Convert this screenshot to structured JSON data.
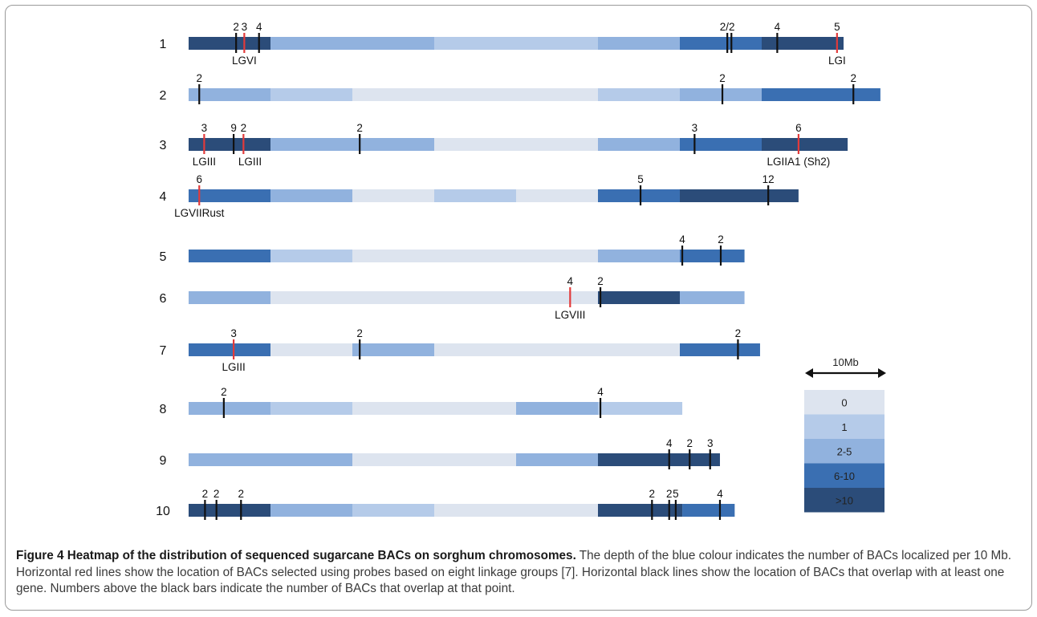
{
  "colors": {
    "0": "#dde4ef",
    "1": "#b5cbe9",
    "2-5": "#91b2de",
    "6-10": "#3a6fb2",
    ">10": "#2b4c79",
    "red_line": "#e23a3a",
    "black_line": "#111111"
  },
  "chart_data": {
    "type": "heatmap",
    "bin_size_mb": 10,
    "chromosomes": [
      {
        "label": "1",
        "bins": [
          ">10",
          "2-5",
          "2-5",
          "1",
          "1",
          "2-5",
          "6-10",
          ">10"
        ],
        "markers": [
          {
            "color": "black",
            "label": "2",
            "pos_mb": 5.8
          },
          {
            "color": "red",
            "label": "3",
            "pos_mb": 6.8
          },
          {
            "color": "black",
            "label": "4",
            "pos_mb": 8.6
          },
          {
            "color": "black",
            "label": "2/2",
            "pos_mb": 65.8
          },
          {
            "color": "black",
            "label": "",
            "pos_mb": 66.3
          },
          {
            "color": "black",
            "label": "4",
            "pos_mb": 71.9
          },
          {
            "color": "red",
            "label": "5",
            "pos_mb": 79.2
          }
        ],
        "lg_labels": [
          {
            "text": "LGVI",
            "pos_mb": 6.8
          },
          {
            "text": "LGI",
            "pos_mb": 79.2
          }
        ]
      },
      {
        "label": "2",
        "bins": [
          "2-5",
          "1",
          "0",
          "0",
          "0",
          "1",
          "2-5",
          "6-10"
        ],
        "end_mb": 84.5,
        "markers": [
          {
            "color": "black",
            "label": "2",
            "pos_mb": 1.3
          },
          {
            "color": "black",
            "label": "2",
            "pos_mb": 65.2
          },
          {
            "color": "black",
            "label": "2",
            "pos_mb": 81.2
          }
        ],
        "lg_labels": []
      },
      {
        "label": "3",
        "bins": [
          ">10",
          "2-5",
          "2-5",
          "0",
          "0",
          "2-5",
          "6-10",
          ">10"
        ],
        "end_mb": 80.5,
        "markers": [
          {
            "color": "red",
            "label": "3",
            "pos_mb": 1.9
          },
          {
            "color": "black",
            "label": "9",
            "pos_mb": 5.5
          },
          {
            "color": "red",
            "label": "2",
            "pos_mb": 6.7
          },
          {
            "color": "black",
            "label": "2",
            "pos_mb": 20.9
          },
          {
            "color": "black",
            "label": "3",
            "pos_mb": 61.8
          },
          {
            "color": "red",
            "label": "6",
            "pos_mb": 74.5
          }
        ],
        "lg_labels": [
          {
            "text": "LGIII",
            "pos_mb": 1.9
          },
          {
            "text": "LGIII",
            "pos_mb": 7.5
          },
          {
            "text": "LGIIA1 (Sh2)",
            "pos_mb": 74.5
          }
        ]
      },
      {
        "label": "4",
        "bins": [
          "6-10",
          "2-5",
          "0",
          "1",
          "0",
          "6-10",
          ">10",
          ">10"
        ],
        "end_mb": 74.5,
        "markers": [
          {
            "color": "red",
            "label": "6",
            "pos_mb": 1.3
          },
          {
            "color": "black",
            "label": "5",
            "pos_mb": 55.2
          },
          {
            "color": "black",
            "label": "12",
            "pos_mb": 70.8
          }
        ],
        "lg_labels": [
          {
            "text": "LGVIIRust",
            "pos_mb": 1.3
          }
        ]
      },
      {
        "label": "5",
        "bins": [
          "6-10",
          "1",
          "0",
          "0",
          "0",
          "2-5",
          "6-10"
        ],
        "end_mb": 67.9,
        "markers": [
          {
            "color": "black",
            "label": "4",
            "pos_mb": 60.3
          },
          {
            "color": "black",
            "label": "2",
            "pos_mb": 65.0
          }
        ],
        "lg_labels": []
      },
      {
        "label": "6",
        "bins": [
          "2-5",
          "0",
          "0",
          "0",
          "0",
          ">10",
          "2-5"
        ],
        "end_mb": 67.9,
        "markers": [
          {
            "color": "red",
            "label": "4",
            "pos_mb": 46.6
          },
          {
            "color": "black",
            "label": "2",
            "pos_mb": 50.3
          }
        ],
        "lg_labels": [
          {
            "text": "LGVIII",
            "pos_mb": 46.6
          }
        ]
      },
      {
        "label": "7",
        "bins": [
          "6-10",
          "0",
          "2-5",
          "0",
          "0",
          "0",
          "6-10"
        ],
        "end_mb": 69.8,
        "markers": [
          {
            "color": "red",
            "label": "3",
            "pos_mb": 5.5
          },
          {
            "color": "black",
            "label": "2",
            "pos_mb": 20.9
          },
          {
            "color": "black",
            "label": "2",
            "pos_mb": 67.1
          }
        ],
        "lg_labels": [
          {
            "text": "LGIII",
            "pos_mb": 5.5
          }
        ]
      },
      {
        "label": "8",
        "bins": [
          "2-5",
          "1",
          "0",
          "0",
          "2-5",
          "1"
        ],
        "end_mb": 60.3,
        "markers": [
          {
            "color": "black",
            "label": "2",
            "pos_mb": 4.3
          },
          {
            "color": "black",
            "label": "4",
            "pos_mb": 50.3
          }
        ],
        "lg_labels": []
      },
      {
        "label": "9",
        "bins": [
          "2-5",
          "2-5",
          "0",
          "0",
          "2-5",
          ">10",
          ">10"
        ],
        "end_mb": 64.9,
        "markers": [
          {
            "color": "black",
            "label": "4",
            "pos_mb": 58.7
          },
          {
            "color": "black",
            "label": "2",
            "pos_mb": 61.2
          },
          {
            "color": "black",
            "label": "3",
            "pos_mb": 63.7
          }
        ],
        "lg_labels": []
      },
      {
        "label": "10",
        "bins": [
          ">10",
          "2-5",
          "1",
          "0",
          "0",
          ">10",
          "6-10"
        ],
        "end_mb": 66.7,
        "dark_end_mb": 60.3,
        "markers": [
          {
            "color": "black",
            "label": "2",
            "pos_mb": 2.0
          },
          {
            "color": "black",
            "label": "2",
            "pos_mb": 3.4
          },
          {
            "color": "black",
            "label": "2",
            "pos_mb": 6.4
          },
          {
            "color": "black",
            "label": "2",
            "pos_mb": 56.6
          },
          {
            "color": "black",
            "label": "2",
            "pos_mb": 58.7
          },
          {
            "color": "black",
            "label": "5",
            "pos_mb": 59.5
          },
          {
            "color": "black",
            "label": "4",
            "pos_mb": 64.9
          }
        ],
        "lg_labels": []
      }
    ],
    "legend": {
      "scale_label": "10Mb",
      "entries": [
        "0",
        "1",
        "2-5",
        "6-10",
        ">10"
      ],
      "placement": "bottom-right"
    }
  },
  "caption": {
    "title": "Figure 4 Heatmap of the distribution of sequenced sugarcane BACs on sorghum chromosomes.",
    "body": " The depth of the blue colour indicates the number of BACs localized per 10 Mb. Horizontal red lines show the location of BACs selected using probes based on eight linkage groups [7]. Horizontal black lines show the location of BACs that overlap with at least one gene. Numbers above the black bars indicate the number of BACs that overlap at that point."
  }
}
